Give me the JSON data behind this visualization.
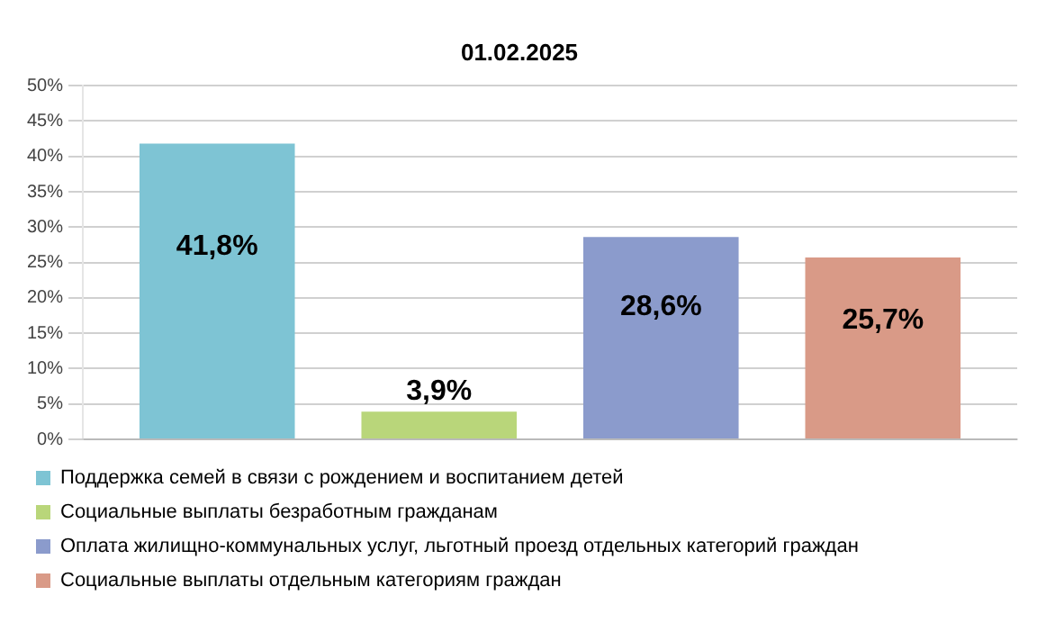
{
  "chart_data": {
    "type": "bar",
    "title": "01.02.2025",
    "categories": [
      null
    ],
    "series": [
      {
        "name": "Поддержка семей в связи с рождением и воспитанием детей",
        "color": "#7ec4d4",
        "values": [
          41.8
        ],
        "value_labels": [
          "41,8%"
        ]
      },
      {
        "name": "Социальные выплаты безработным гражданам",
        "color": "#b9d67a",
        "values": [
          3.9
        ],
        "value_labels": [
          "3,9%"
        ]
      },
      {
        "name": "Оплата жилищно-коммунальных услуг, льготный проезд отдельных категорий граждан",
        "color": "#8b9bcc",
        "values": [
          28.6
        ],
        "value_labels": [
          "28,6%"
        ]
      },
      {
        "name": "Социальные выплаты отдельным категориям граждан",
        "color": "#d99a87",
        "values": [
          25.7
        ],
        "value_labels": [
          "25,7%"
        ]
      }
    ],
    "ylim": [
      0,
      50
    ],
    "yticks": [
      {
        "value": 0,
        "label": "0%"
      },
      {
        "value": 5,
        "label": "5%"
      },
      {
        "value": 10,
        "label": "10%"
      },
      {
        "value": 15,
        "label": "15%"
      },
      {
        "value": 20,
        "label": "20%"
      },
      {
        "value": 25,
        "label": "25%"
      },
      {
        "value": 30,
        "label": "30%"
      },
      {
        "value": 35,
        "label": "35%"
      },
      {
        "value": 40,
        "label": "40%"
      },
      {
        "value": 45,
        "label": "45%"
      },
      {
        "value": 50,
        "label": "50%"
      }
    ],
    "grid": "y",
    "legend": "bottom"
  }
}
